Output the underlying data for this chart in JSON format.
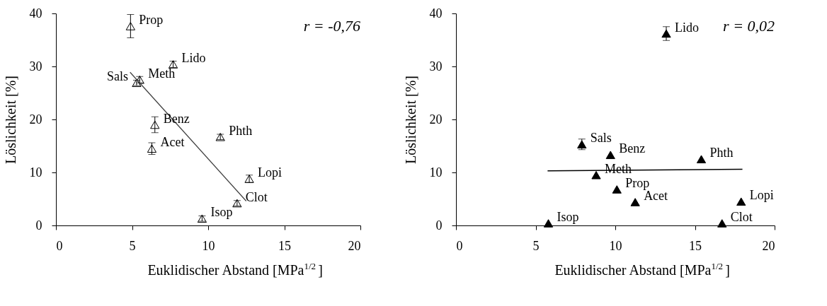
{
  "chart_data": [
    {
      "type": "scatter",
      "xlabel": "Euklidischer Abstand [MPa$^{1/2}$]",
      "ylabel": "Löslichkeit [%]",
      "xlim": [
        0,
        20
      ],
      "ylim": [
        0,
        40
      ],
      "xticks": [
        0,
        5,
        10,
        15,
        20
      ],
      "yticks": [
        0,
        10,
        20,
        30,
        40
      ],
      "grid": false,
      "marker": "triangle",
      "series": [
        {
          "color": "#ffffff",
          "x": [
            4.9,
            7.7,
            5.5,
            5.3,
            6.5,
            6.3,
            10.8,
            12.7,
            11.9,
            9.6
          ],
          "values": [
            37.6,
            30.4,
            27.5,
            26.9,
            19.0,
            14.5,
            16.7,
            8.8,
            4.2,
            1.3
          ],
          "errors": [
            2.2,
            0.6,
            0.6,
            0.5,
            1.5,
            1.1,
            0.5,
            0.7,
            0.5,
            0.5
          ]
        },
        {
          "type": "line",
          "marker": "none",
          "color": "#404040",
          "x": [
            4.87,
            12.5
          ],
          "values": [
            28.9,
            4.6
          ]
        }
      ],
      "annotations": [
        "r = -0,76",
        {
          "text": "Prop",
          "x": 4.9,
          "y": 37.6
        },
        {
          "text": "Lido",
          "x": 7.7,
          "y": 30.4
        },
        {
          "text": "Meth",
          "x": 5.5,
          "y": 27.5
        },
        {
          "text": "Sals",
          "x": 5.3,
          "y": 26.9
        },
        {
          "text": "Benz",
          "x": 6.5,
          "y": 19.0
        },
        {
          "text": "Acet",
          "x": 6.3,
          "y": 14.5
        },
        {
          "text": "Phth",
          "x": 10.8,
          "y": 16.7
        },
        {
          "text": "Lopi",
          "x": 12.7,
          "y": 8.8
        },
        {
          "text": "Clot",
          "x": 11.9,
          "y": 4.2
        },
        {
          "text": "Isop",
          "x": 9.6,
          "y": 1.3
        }
      ]
    },
    {
      "type": "scatter",
      "xlabel": "Euklidischer Abstand [MPa$^{1/2}$]",
      "ylabel": "Löslichkeit [%]",
      "xlim": [
        0,
        20
      ],
      "ylim": [
        0,
        40
      ],
      "xticks": [
        0,
        5,
        10,
        15,
        20
      ],
      "yticks": [
        0,
        10,
        20,
        30,
        40
      ],
      "grid": false,
      "marker": "triangle",
      "series": [
        {
          "color": "#000000",
          "x": [
            13.2,
            7.9,
            9.7,
            15.4,
            8.8,
            10.1,
            11.25,
            17.9,
            5.8,
            16.7
          ],
          "values": [
            36.2,
            15.3,
            13.3,
            12.5,
            9.5,
            6.8,
            4.4,
            4.5,
            0.4,
            0.4
          ],
          "errors": [
            1.3,
            1.0,
            null,
            null,
            null,
            null,
            null,
            null,
            null,
            null
          ]
        },
        {
          "type": "line",
          "marker": "none",
          "color": "#000000",
          "x": [
            5.75,
            17.98
          ],
          "values": [
            10.3,
            10.6
          ]
        }
      ],
      "annotations": [
        "r = 0,02",
        {
          "text": "Lido",
          "x": 13.2,
          "y": 36.2
        },
        {
          "text": "Sals",
          "x": 7.9,
          "y": 15.3
        },
        {
          "text": "Benz",
          "x": 9.7,
          "y": 13.3
        },
        {
          "text": "Phth",
          "x": 15.4,
          "y": 12.5
        },
        {
          "text": "Meth",
          "x": 8.8,
          "y": 9.5
        },
        {
          "text": "Prop",
          "x": 10.1,
          "y": 6.8
        },
        {
          "text": "Acet",
          "x": 11.25,
          "y": 4.4
        },
        {
          "text": "Lopi",
          "x": 17.9,
          "y": 4.5
        },
        {
          "text": "Isop",
          "x": 5.8,
          "y": 0.4
        },
        {
          "text": "Clot",
          "x": 16.7,
          "y": 0.4
        }
      ]
    }
  ]
}
